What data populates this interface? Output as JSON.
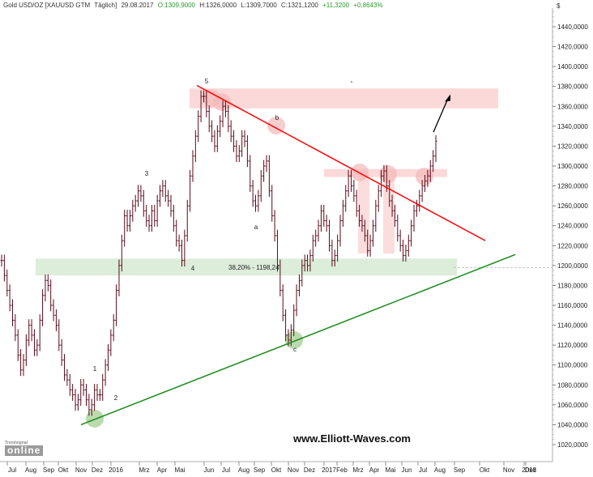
{
  "header": {
    "instrument": "Gold USD/OZ [XAUUSD GTM",
    "period": "Täglich]",
    "date": "29.08.2017",
    "open": "O:1309,9000",
    "high": "H:1326,0000",
    "low": "L:1309,7000",
    "close": "C:1321,1200",
    "change": "+11,3200",
    "change_pct": "+0,8643%",
    "currency_symbol": "$"
  },
  "watermark": "www.Elliott-Waves.com",
  "logo": {
    "small": "Trendsignal",
    "main": "online"
  },
  "fib_label": "38,20% - 1198,24",
  "colors": {
    "bull": "#2a9a2a",
    "bear": "#cc2222",
    "candles": "#5a0a1a",
    "resistance_line": "#ff0000",
    "support_line": "#1a8a1a",
    "red_zone": "#fbd5d5",
    "green_zone": "#d6ead3"
  },
  "chart_data": {
    "type": "line",
    "title": "",
    "ylabel": "$",
    "ylim": [
      1005,
      1460
    ],
    "y_ticks": [
      1020,
      1040,
      1060,
      1080,
      1100,
      1120,
      1140,
      1160,
      1180,
      1200,
      1220,
      1240,
      1260,
      1280,
      1300,
      1320,
      1340,
      1360,
      1380,
      1400,
      1420,
      1440
    ],
    "y_tick_labels": [
      "1020,0000",
      "1040,0000",
      "1060,0000",
      "1080,0000",
      "1100,0000",
      "1120,0000",
      "1140,0000",
      "1160,0000",
      "1180,0000",
      "1200,0000",
      "1220,0000",
      "1240,0000",
      "1260,0000",
      "1280,0000",
      "1300,0000",
      "1320,0000",
      "1340,0000",
      "1360,0000",
      "1380,0000",
      "1400,0000",
      "1420,0000",
      "1440,0000"
    ],
    "x_ticks": [
      "Jul",
      "Aug",
      "Sep",
      "Okt",
      "Nov",
      "Dez",
      "2016",
      "Mrz",
      "Apr",
      "Mai",
      "Jun",
      "Jul",
      "Aug",
      "Sep",
      "Okt",
      "Nov",
      "Dez",
      "2017",
      "Feb",
      "Mrz",
      "Apr",
      "Mai",
      "Jun",
      "Jul",
      "Aug",
      "Sep",
      "Okt",
      "Nov",
      "Dez",
      "2018"
    ],
    "series": [
      {
        "values": [
          1205,
          1190,
          1175,
          1160,
          1145,
          1130,
          1110,
          1095,
          1105,
          1125,
          1140,
          1130,
          1115,
          1120,
          1145,
          1170,
          1185,
          1180,
          1160,
          1150,
          1140,
          1120,
          1105,
          1090,
          1085,
          1075,
          1070,
          1060,
          1065,
          1080,
          1075,
          1065,
          1055,
          1060,
          1075,
          1070,
          1070,
          1085,
          1100,
          1115,
          1130,
          1145,
          1175,
          1200,
          1225,
          1250,
          1240,
          1250,
          1260,
          1265,
          1275,
          1270,
          1255,
          1245,
          1240,
          1255,
          1245,
          1265,
          1275,
          1280,
          1270,
          1265,
          1255,
          1240,
          1225,
          1220,
          1205,
          1230,
          1260,
          1290,
          1310,
          1330,
          1350,
          1370,
          1370,
          1355,
          1340,
          1330,
          1320,
          1335,
          1345,
          1360,
          1355,
          1340,
          1330,
          1320,
          1310,
          1315,
          1330,
          1325,
          1305,
          1280,
          1265,
          1260,
          1270,
          1290,
          1300,
          1305,
          1275,
          1250,
          1230,
          1200,
          1175,
          1150,
          1130,
          1125,
          1135,
          1155,
          1175,
          1185,
          1200,
          1205,
          1200,
          1210,
          1225,
          1230,
          1240,
          1255,
          1245,
          1240,
          1220,
          1205,
          1210,
          1225,
          1245,
          1260,
          1275,
          1290,
          1280,
          1270,
          1255,
          1245,
          1240,
          1230,
          1215,
          1225,
          1240,
          1260,
          1275,
          1290,
          1295,
          1280,
          1265,
          1255,
          1245,
          1230,
          1220,
          1210,
          1215,
          1225,
          1240,
          1255,
          1260,
          1270,
          1280,
          1285,
          1290,
          1300,
          1310,
          1325
        ]
      }
    ],
    "resistance_line": {
      "x_start": "Jun",
      "y_start": 1381,
      "x_end": "Nov",
      "y_end": 1225
    },
    "support_line": {
      "x_start": "Nov",
      "y_start": 1040,
      "x_end": "Nov",
      "y_end": 1211
    },
    "green_zone": {
      "y_low": 1190,
      "y_high": 1207,
      "label": "38,20% - 1198,24"
    },
    "red_zone_top": {
      "y_low": 1358,
      "y_high": 1378
    },
    "red_zone_mid": {
      "y_low": 1289,
      "y_high": 1297
    },
    "target_arrow": {
      "y_start": 1334,
      "y_end": 1372
    },
    "wave_labels": [
      {
        "label": "1"
      },
      {
        "label": "2"
      },
      {
        "label": "3"
      },
      {
        "label": "4"
      },
      {
        "label": "5"
      },
      {
        "label": "a"
      },
      {
        "label": "b"
      },
      {
        "label": "c"
      }
    ]
  }
}
